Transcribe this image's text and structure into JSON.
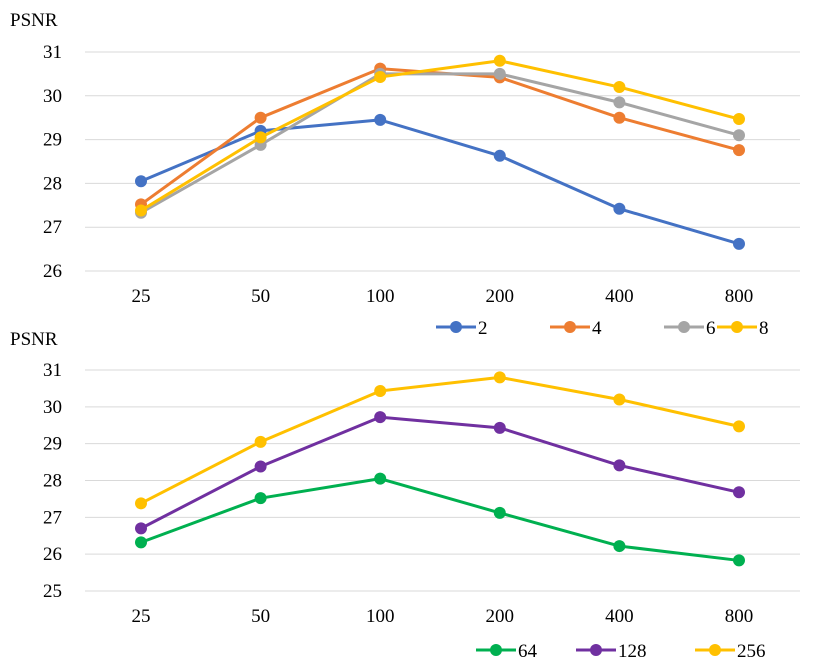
{
  "chart_data": [
    {
      "type": "line",
      "title": "",
      "xlabel": "",
      "ylabel": "PSNR",
      "categories": [
        "25",
        "50",
        "100",
        "200",
        "400",
        "800"
      ],
      "ylim": [
        26,
        31
      ],
      "yticks": [
        26,
        27,
        28,
        29,
        30,
        31
      ],
      "grid": true,
      "legend_position": "bottom-right",
      "series": [
        {
          "name": "2",
          "color": "#4472C4",
          "values": [
            28.05,
            29.2,
            29.45,
            28.63,
            27.42,
            26.62
          ]
        },
        {
          "name": "4",
          "color": "#ED7D31",
          "values": [
            27.52,
            29.5,
            30.62,
            30.42,
            29.5,
            28.76
          ]
        },
        {
          "name": "6",
          "color": "#A5A5A5",
          "values": [
            27.33,
            28.88,
            30.5,
            30.5,
            29.85,
            29.1
          ]
        },
        {
          "name": "8",
          "color": "#FFC000",
          "values": [
            27.38,
            29.05,
            30.43,
            30.8,
            30.2,
            29.47
          ]
        }
      ]
    },
    {
      "type": "line",
      "title": "",
      "xlabel": "",
      "ylabel": "PSNR",
      "categories": [
        "25",
        "50",
        "100",
        "200",
        "400",
        "800"
      ],
      "ylim": [
        25,
        31
      ],
      "yticks": [
        25,
        26,
        27,
        28,
        29,
        30,
        31
      ],
      "grid": true,
      "legend_position": "bottom-right",
      "series": [
        {
          "name": "64",
          "color": "#00B050",
          "values": [
            26.32,
            27.52,
            28.05,
            27.12,
            26.22,
            25.83
          ]
        },
        {
          "name": "128",
          "color": "#7030A0",
          "values": [
            26.7,
            28.38,
            29.72,
            29.43,
            28.41,
            27.68
          ]
        },
        {
          "name": "256",
          "color": "#FFC000",
          "values": [
            27.38,
            29.05,
            30.43,
            30.8,
            30.2,
            29.47
          ]
        }
      ]
    }
  ]
}
